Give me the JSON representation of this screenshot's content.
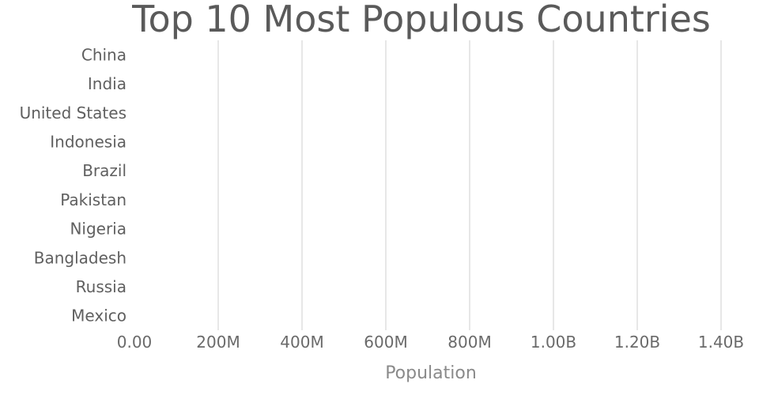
{
  "chart_data": {
    "type": "bar",
    "orientation": "horizontal",
    "title": "Top 10 Most Populous Countries",
    "xlabel": "Population",
    "ylabel": "",
    "categories": [
      "China",
      "India",
      "United States",
      "Indonesia",
      "Brazil",
      "Pakistan",
      "Nigeria",
      "Bangladesh",
      "Russia",
      "Mexico"
    ],
    "values": [
      0,
      0,
      0,
      0,
      0,
      0,
      0,
      0,
      0,
      0
    ],
    "xlim": [
      0,
      1400000000
    ],
    "x_ticks": [
      0,
      200000000,
      400000000,
      600000000,
      800000000,
      1000000000,
      1200000000,
      1400000000
    ],
    "x_tick_labels": [
      "0.00",
      "200M",
      "400M",
      "600M",
      "800M",
      "1.00B",
      "1.20B",
      "1.40B"
    ],
    "grid": "vertical",
    "bar_color": "#1f77b4"
  }
}
